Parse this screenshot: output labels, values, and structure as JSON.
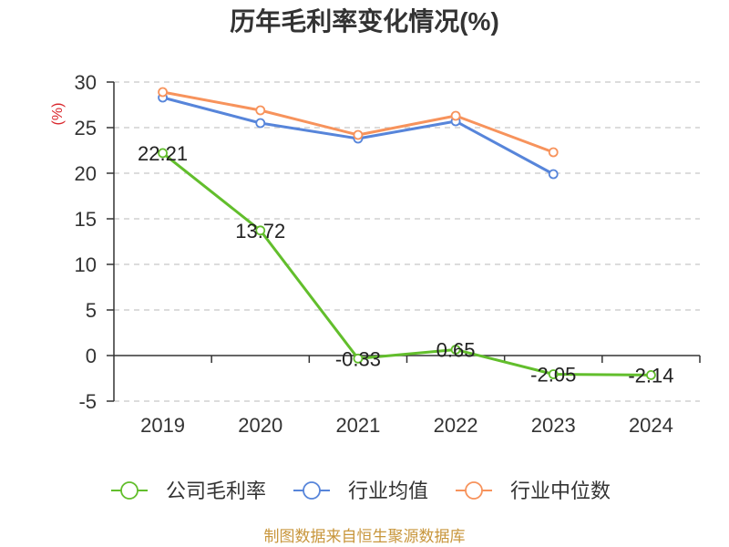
{
  "chart_data": {
    "type": "line",
    "title": "历年毛利率变化情况(%)",
    "ylabel": "(%)",
    "xlabel": "",
    "categories": [
      "2019",
      "2020",
      "2021",
      "2022",
      "2023",
      "2024"
    ],
    "ylim": [
      -5,
      30
    ],
    "yticks": [
      30,
      25,
      20,
      15,
      10,
      5,
      0,
      -5
    ],
    "grid": true,
    "legend_position": "bottom",
    "series": [
      {
        "name": "公司毛利率",
        "color": "#62be2c",
        "values": [
          22.21,
          13.72,
          -0.33,
          0.65,
          -2.05,
          -2.14
        ],
        "data_labels": true
      },
      {
        "name": "行业均值",
        "color": "#5785da",
        "values": [
          28.3,
          25.5,
          23.8,
          25.7,
          19.9,
          null
        ],
        "data_labels": false
      },
      {
        "name": "行业中位数",
        "color": "#f7935c",
        "values": [
          28.9,
          26.9,
          24.2,
          26.3,
          22.3,
          null
        ],
        "data_labels": false
      }
    ]
  },
  "footer": "制图数据来自恒生聚源数据库"
}
